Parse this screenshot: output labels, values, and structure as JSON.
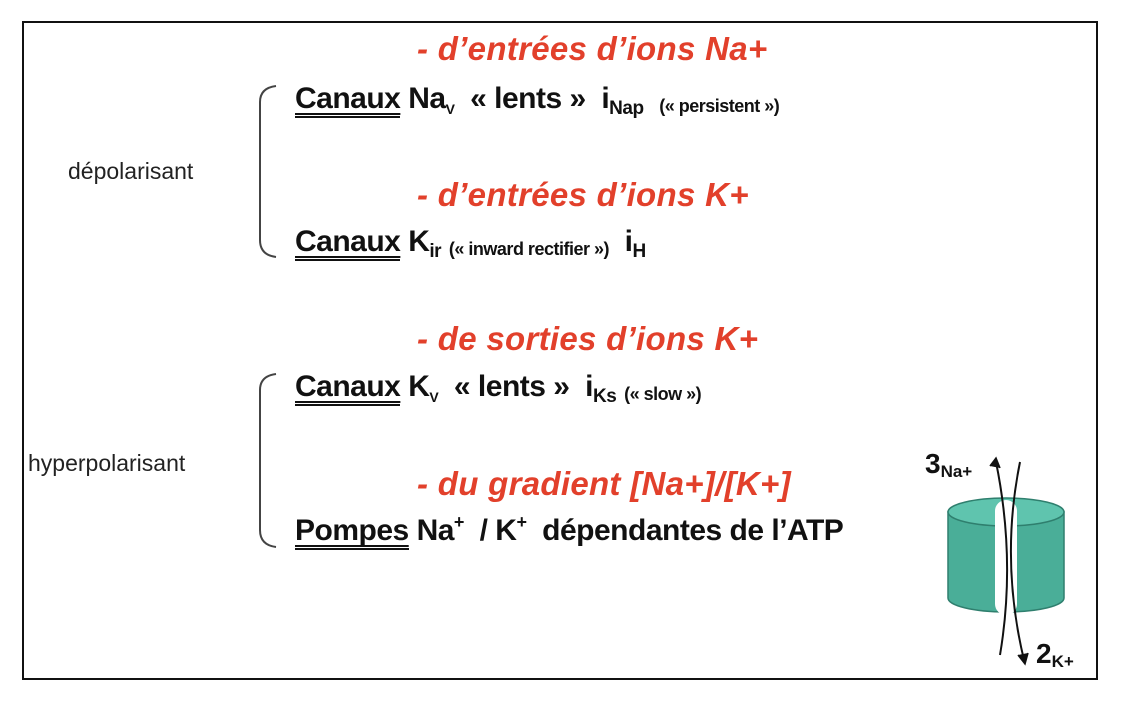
{
  "slide": {
    "labels": {
      "depolarizing": "dépolarisant",
      "hyperpolarizing": "hyperpolarisant"
    },
    "rows": [
      {
        "heading": "- d’entrées d’ions Na+",
        "prefix": "Canaux",
        "ion": "Na",
        "ion_sub": "V",
        "middle": "« lents »",
        "current": "i",
        "current_sub": "Nap",
        "note": "(« persistent »)"
      },
      {
        "heading": "- d’entrées d’ions K+",
        "prefix": "Canaux",
        "ion": "K",
        "ion_sub": "ir",
        "note": "(« inward rectifier »)",
        "current": "i",
        "current_sub": "H"
      },
      {
        "heading": "- de sorties d’ions K+",
        "prefix": "Canaux",
        "ion": "K",
        "ion_sub": "V",
        "middle": "« lents »",
        "current": "i",
        "current_sub": "Ks",
        "note": "(« slow »)"
      },
      {
        "heading": "- du gradient [Na+]/[K+]",
        "prefix": "Pompes",
        "ion1": "Na",
        "sup1": "+",
        "sep": "/",
        "ion2": "K",
        "sup2": "+",
        "rest": "dépendantes de l’ATP"
      }
    ],
    "pump": {
      "na_count": "3",
      "na_label": "Na+",
      "k_count": "2",
      "k_label": "K+"
    },
    "colors": {
      "heading": "#e2402b",
      "pump": "#4fb9a3"
    }
  }
}
